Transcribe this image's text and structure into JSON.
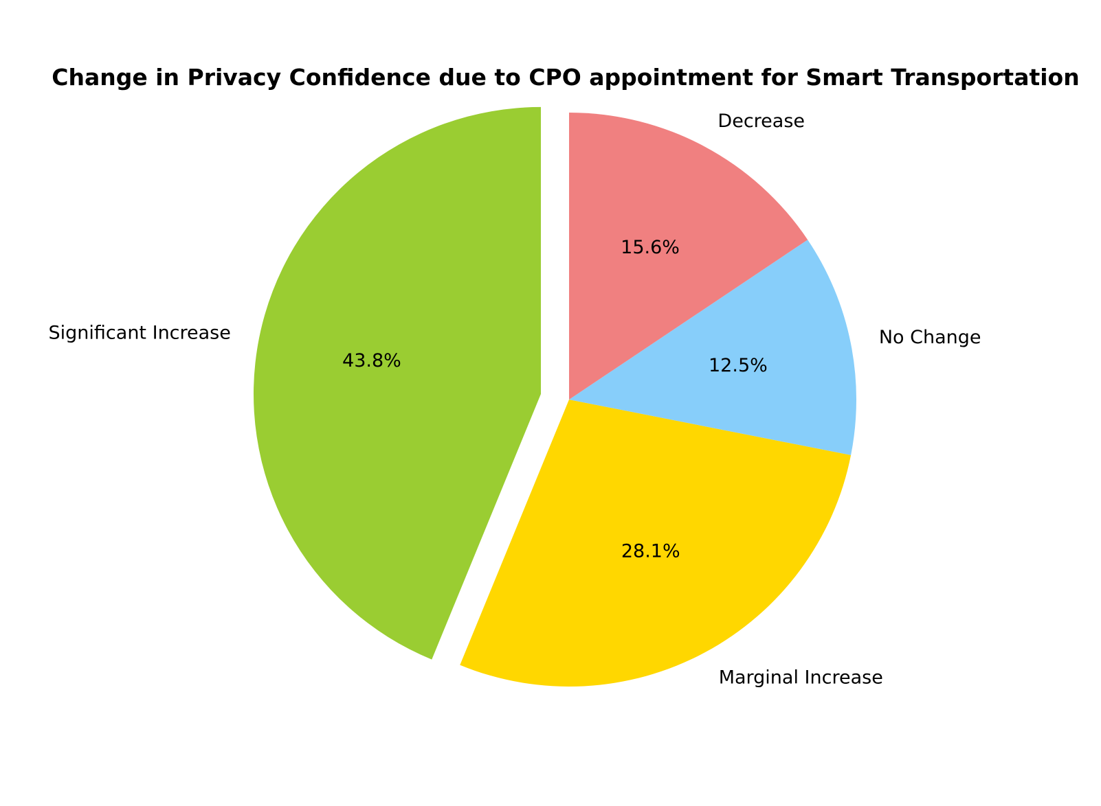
{
  "chart_data": {
    "type": "pie",
    "title": "Change in Privacy Confidence due to CPO appointment for Smart Transportation",
    "categories": [
      "Significant Increase",
      "Marginal Increase",
      "No Change",
      "Decrease"
    ],
    "values": [
      43.8,
      28.1,
      12.5,
      15.6
    ],
    "percent_labels": [
      "43.8%",
      "28.1%",
      "12.5%",
      "15.6%"
    ],
    "colors": [
      "#9ACD32",
      "#FFD700",
      "#87CEFA",
      "#F08080"
    ],
    "exploded": [
      true,
      false,
      false,
      false
    ],
    "start_angle_deg": 90,
    "direction": "counterclockwise"
  }
}
